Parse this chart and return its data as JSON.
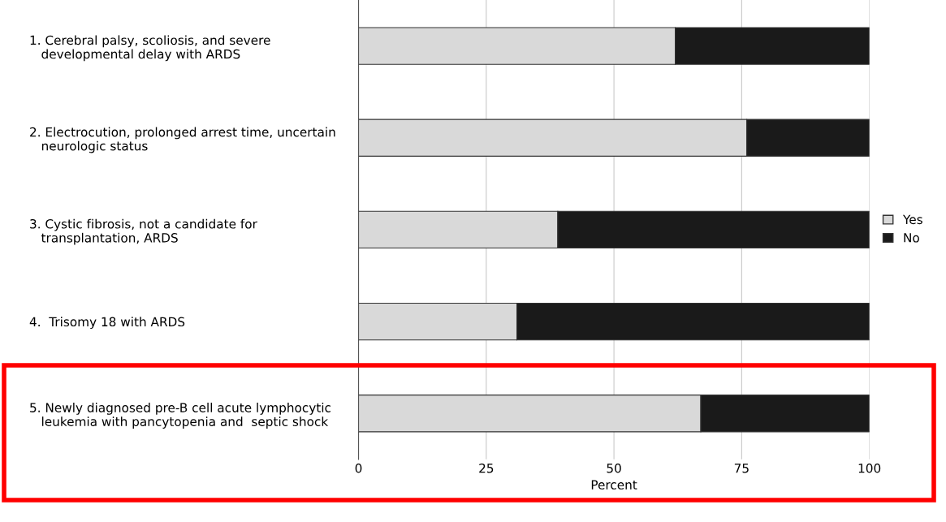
{
  "chart_data": {
    "type": "bar",
    "orientation": "horizontal",
    "stacked": true,
    "categories": [
      "1. Cerebral palsy, scoliosis, and severe\n   developmental delay with ARDS",
      "2. Electrocution, prolonged arrest time, uncertain\n   neurologic status",
      "3. Cystic fibrosis, not a candidate for\n   transplantation, ARDS",
      "4.  Trisomy 18 with ARDS",
      "5. Newly diagnosed pre-B cell acute lymphocytic\n   leukemia with pancytopenia and  septic shock"
    ],
    "series": [
      {
        "name": "Yes",
        "color": "#d9d9d9",
        "values": [
          62,
          76,
          39,
          31,
          67
        ]
      },
      {
        "name": "No",
        "color": "#1a1a1a",
        "values": [
          38,
          24,
          61,
          69,
          33
        ]
      }
    ],
    "xlabel": "Percent",
    "xlim": [
      0,
      100
    ],
    "xticks": [
      0,
      25,
      50,
      75,
      100
    ],
    "grid": "x",
    "legend": "right"
  }
}
